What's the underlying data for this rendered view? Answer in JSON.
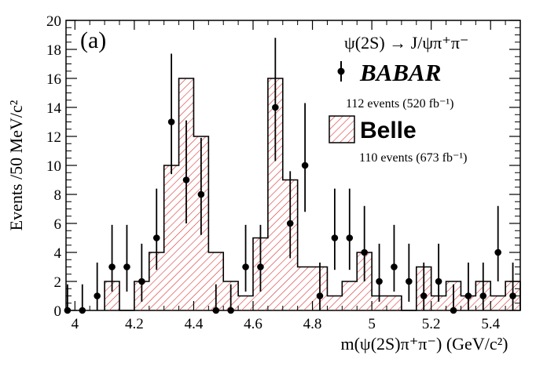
{
  "chart_data": {
    "type": "histogram+errorbar",
    "panel_label": "(a)",
    "xlabel": "m(ψ(2S)π⁺π⁻) (GeV/c²)",
    "ylabel": "Events /50 MeV/c²",
    "xlim": [
      3.97,
      5.5
    ],
    "ylim": [
      0,
      20
    ],
    "x_ticks": [
      4,
      4.2,
      4.4,
      4.6,
      4.8,
      5,
      5.2,
      5.4
    ],
    "x_tick_labels": [
      "4",
      "4.2",
      "4.4",
      "4.6",
      "4.8",
      "5",
      "5.2",
      "5.4"
    ],
    "y_ticks": [
      0,
      2,
      4,
      6,
      8,
      10,
      12,
      14,
      16,
      18,
      20
    ],
    "y_tick_labels": [
      "0",
      "2",
      "4",
      "6",
      "8",
      "10",
      "12",
      "14",
      "16",
      "18",
      "20"
    ],
    "legend": {
      "title": "ψ(2S) → J/ψπ⁺π⁻",
      "babar_label": "BABAR",
      "babar_events": "112 events (520 fb⁻¹)",
      "belle_label": "Belle",
      "belle_events": "110 events (673 fb⁻¹)"
    },
    "series": [
      {
        "name": "Belle",
        "style": "hatched-histogram",
        "bin_edges": [
          4.1,
          4.15,
          4.2,
          4.25,
          4.3,
          4.35,
          4.4,
          4.45,
          4.5,
          4.55,
          4.6,
          4.65,
          4.7,
          4.75,
          4.8,
          4.85,
          4.9,
          4.95,
          5.0,
          5.05,
          5.1,
          5.15,
          5.2,
          5.25,
          5.3,
          5.35,
          5.4,
          5.45,
          5.5
        ],
        "values": [
          2,
          0,
          2,
          4,
          10,
          16,
          12,
          4,
          2,
          1,
          5,
          16,
          9,
          3,
          3,
          1,
          2,
          4,
          1,
          1,
          0,
          3,
          1,
          2,
          1,
          2,
          1,
          2
        ]
      },
      {
        "name": "BABAR",
        "style": "points-with-errors",
        "x": [
          3.975,
          4.025,
          4.075,
          4.125,
          4.175,
          4.225,
          4.275,
          4.325,
          4.375,
          4.425,
          4.475,
          4.525,
          4.575,
          4.625,
          4.675,
          4.725,
          4.775,
          4.825,
          4.875,
          4.925,
          4.975,
          5.025,
          5.075,
          5.125,
          5.175,
          5.225,
          5.275,
          5.325,
          5.375,
          5.425,
          5.475
        ],
        "y": [
          0,
          0,
          1,
          3,
          3,
          2,
          5,
          13,
          9,
          8,
          0,
          0,
          3,
          3,
          14,
          6,
          10,
          1,
          5,
          5,
          4,
          2,
          3,
          2,
          1,
          2,
          0,
          1,
          1,
          4,
          1
        ],
        "err_low": [
          0,
          0,
          1,
          1.7,
          1.7,
          1.4,
          2.2,
          3.6,
          3,
          2.8,
          0,
          0,
          1.7,
          1.7,
          3.7,
          2.4,
          3.2,
          1,
          2.2,
          2.2,
          2,
          1.4,
          1.7,
          1.4,
          1,
          1.4,
          0,
          1,
          1,
          2,
          1
        ],
        "err_high": [
          1.8,
          1.8,
          2.3,
          2.9,
          2.9,
          2.6,
          3.4,
          4.7,
          4.1,
          3.9,
          1.8,
          1.8,
          2.9,
          2.9,
          4.8,
          3.6,
          4.3,
          2.3,
          3.4,
          3.4,
          3.2,
          2.6,
          2.9,
          2.6,
          2.3,
          2.6,
          1.8,
          2.3,
          2.3,
          3.2,
          2.3
        ]
      }
    ]
  }
}
